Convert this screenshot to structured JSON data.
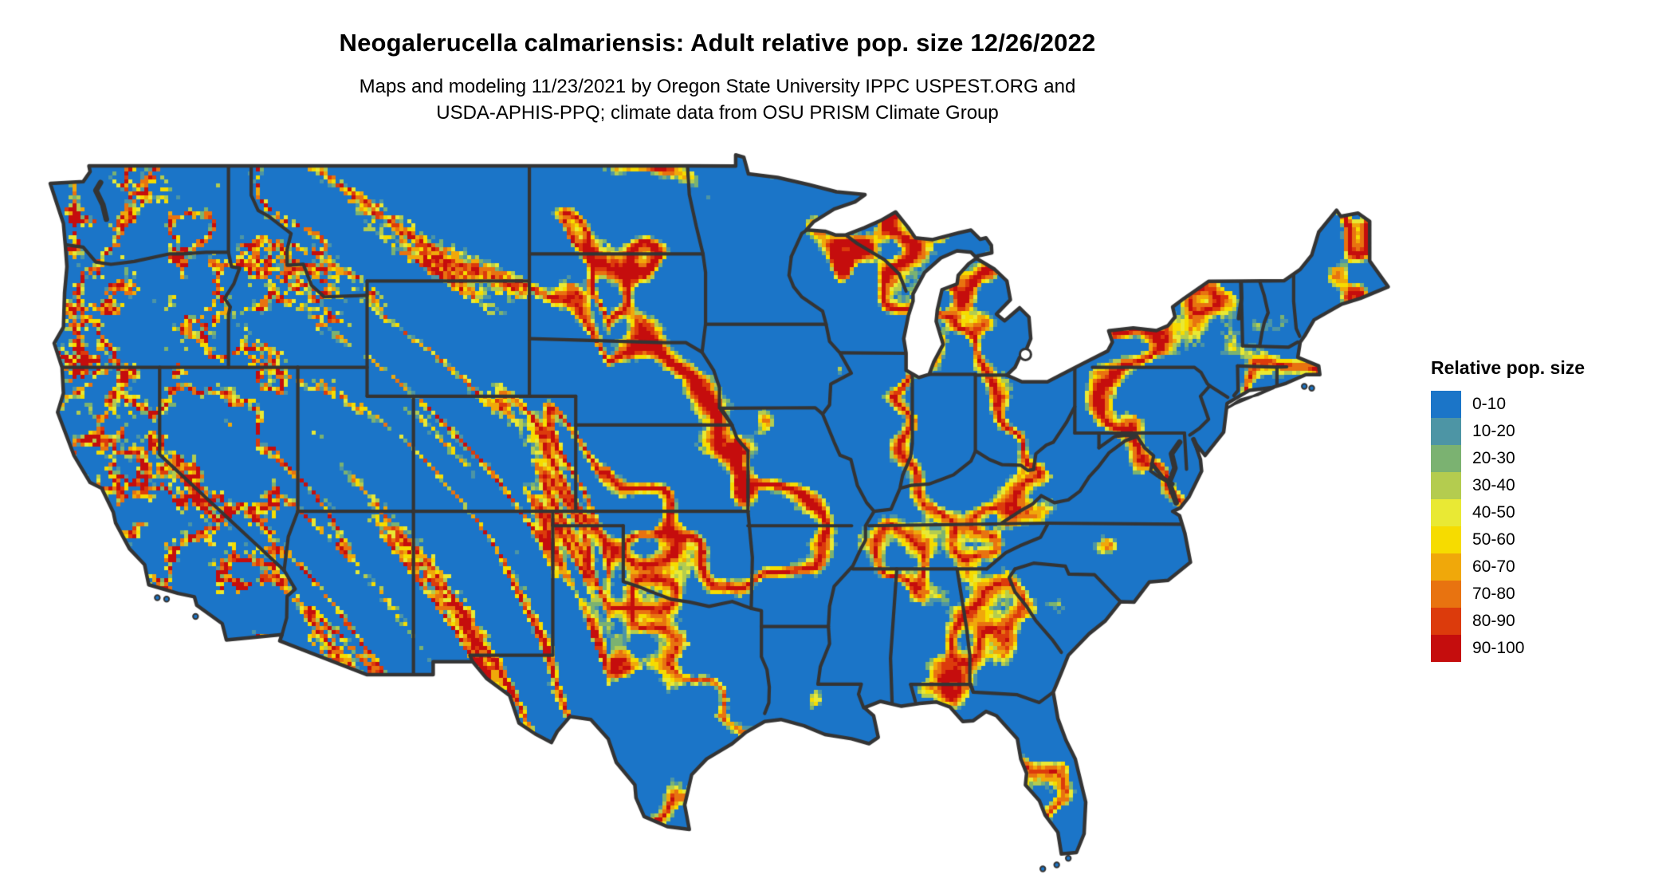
{
  "header": {
    "title": "Neogalerucella calmariensis: Adult relative pop. size 12/26/2022",
    "subtitle_line1": "Maps and modeling 11/23/2021 by Oregon State University IPPC USPEST.ORG and",
    "subtitle_line2": "USDA-APHIS-PPQ; climate data from OSU PRISM Climate Group"
  },
  "legend": {
    "title": "Relative pop. size",
    "items": [
      {
        "label": "0-10",
        "color": "#1B75C8"
      },
      {
        "label": "10-20",
        "color": "#4D95A5"
      },
      {
        "label": "20-30",
        "color": "#7BB271"
      },
      {
        "label": "30-40",
        "color": "#B4CC4F"
      },
      {
        "label": "40-50",
        "color": "#E9E934"
      },
      {
        "label": "50-60",
        "color": "#F6DC00"
      },
      {
        "label": "60-70",
        "color": "#F0A80A"
      },
      {
        "label": "70-80",
        "color": "#E87310"
      },
      {
        "label": "80-90",
        "color": "#DC3B0C"
      },
      {
        "label": "90-100",
        "color": "#C50D0D"
      }
    ]
  },
  "map": {
    "base_color": "#1B75C8",
    "border_color": "#343434",
    "water_color": "#FFFFFF"
  },
  "chart_data": {
    "type": "choropleth-map",
    "title": "Neogalerucella calmariensis: Adult relative pop. size 12/26/2022",
    "legend_title": "Relative pop. size",
    "date_shown": "12/26/2022",
    "modeling_date_shown": "11/23/2021",
    "classes": [
      "0-10",
      "10-20",
      "20-30",
      "30-40",
      "40-50",
      "50-60",
      "60-70",
      "70-80",
      "80-90",
      "90-100"
    ],
    "class_colors": [
      "#1B75C8",
      "#4D95A5",
      "#7BB271",
      "#B4CC4F",
      "#E9E934",
      "#F6DC00",
      "#F0A80A",
      "#E87310",
      "#DC3B0C",
      "#C50D0D"
    ],
    "dominant_class": "0-10",
    "legend_position": "right"
  }
}
